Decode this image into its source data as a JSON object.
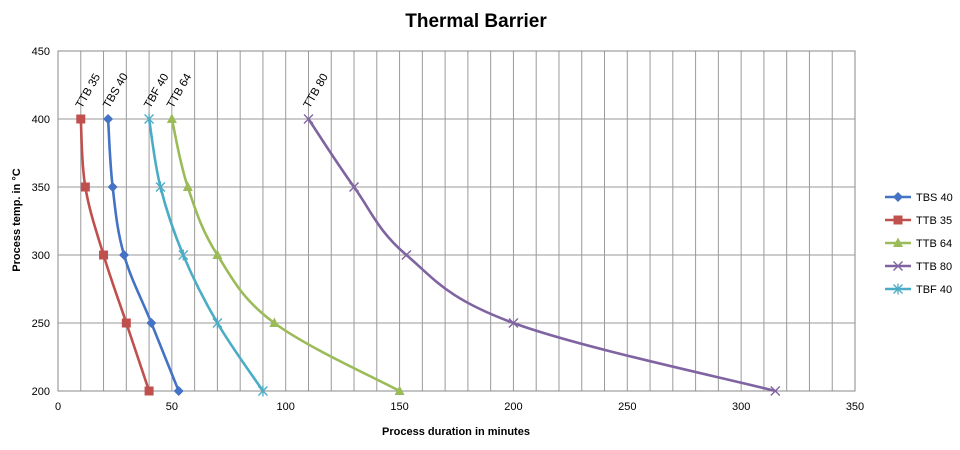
{
  "chart_data": {
    "type": "line",
    "title": "Thermal Barrier",
    "xlabel": "Process duration in minutes",
    "ylabel": "Process temp. in °C",
    "xlim": [
      0,
      350
    ],
    "ylim": [
      200,
      450
    ],
    "xticks": [
      0,
      50,
      100,
      150,
      200,
      250,
      300,
      350
    ],
    "yticks": [
      200,
      250,
      300,
      350,
      400,
      450
    ],
    "x_minor_step": 10,
    "grid": true,
    "legend_position": "right",
    "series": [
      {
        "name": "TBS 40",
        "color": "#4472C4",
        "marker": "diamond",
        "points": [
          [
            22,
            400
          ],
          [
            24,
            350
          ],
          [
            29,
            300
          ],
          [
            41,
            250
          ],
          [
            53,
            200
          ]
        ]
      },
      {
        "name": "TTB 35",
        "color": "#C0504D",
        "marker": "square",
        "points": [
          [
            10,
            400
          ],
          [
            12,
            350
          ],
          [
            20,
            300
          ],
          [
            30,
            250
          ],
          [
            40,
            200
          ]
        ]
      },
      {
        "name": "TTB 64",
        "color": "#9BBB59",
        "marker": "triangle",
        "points": [
          [
            50,
            400
          ],
          [
            57,
            350
          ],
          [
            70,
            300
          ],
          [
            95,
            250
          ],
          [
            150,
            200
          ]
        ]
      },
      {
        "name": "TTB 80",
        "color": "#8064A2",
        "marker": "x",
        "points": [
          [
            110,
            400
          ],
          [
            130,
            350
          ],
          [
            153,
            300
          ],
          [
            200,
            250
          ],
          [
            315,
            200
          ]
        ]
      },
      {
        "name": "TBF 40",
        "color": "#4BACC6",
        "marker": "star",
        "points": [
          [
            40,
            400
          ],
          [
            45,
            350
          ],
          [
            55,
            300
          ],
          [
            70,
            250
          ],
          [
            90,
            200
          ]
        ]
      }
    ],
    "annotations": [
      {
        "text": "TTB 35",
        "x": 10,
        "y": 400
      },
      {
        "text": "TBS 40",
        "x": 22,
        "y": 400
      },
      {
        "text": "TBF 40",
        "x": 40,
        "y": 400
      },
      {
        "text": "TTB 64",
        "x": 50,
        "y": 400
      },
      {
        "text": "TTB 80",
        "x": 110,
        "y": 400
      }
    ]
  }
}
